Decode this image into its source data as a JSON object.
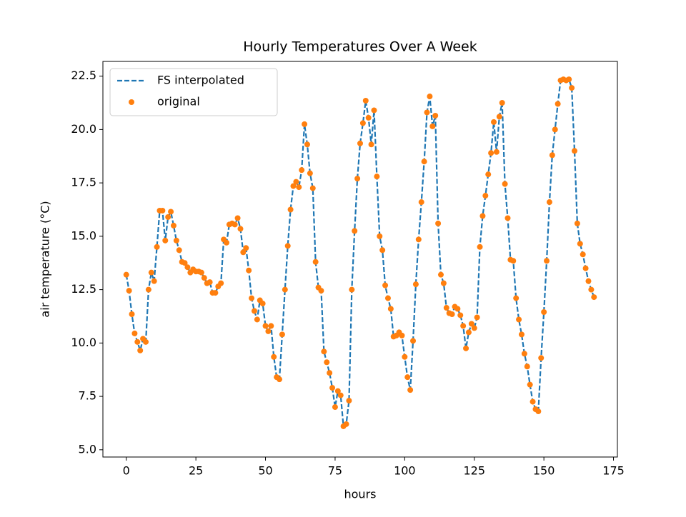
{
  "chart_data": {
    "type": "line",
    "title": "Hourly Temperatures Over A Week",
    "xlabel": "hours",
    "ylabel": "air temperature (°C)",
    "x": [
      0,
      1,
      2,
      3,
      4,
      5,
      6,
      7,
      8,
      9,
      10,
      11,
      12,
      13,
      14,
      15,
      16,
      17,
      18,
      19,
      20,
      21,
      22,
      23,
      24,
      25,
      26,
      27,
      28,
      29,
      30,
      31,
      32,
      33,
      34,
      35,
      36,
      37,
      38,
      39,
      40,
      41,
      42,
      43,
      44,
      45,
      46,
      47,
      48,
      49,
      50,
      51,
      52,
      53,
      54,
      55,
      56,
      57,
      58,
      59,
      60,
      61,
      62,
      63,
      64,
      65,
      66,
      67,
      68,
      69,
      70,
      71,
      72,
      73,
      74,
      75,
      76,
      77,
      78,
      79,
      80,
      81,
      82,
      83,
      84,
      85,
      86,
      87,
      88,
      89,
      90,
      91,
      92,
      93,
      94,
      95,
      96,
      97,
      98,
      99,
      100,
      101,
      102,
      103,
      104,
      105,
      106,
      107,
      108,
      109,
      110,
      111,
      112,
      113,
      114,
      115,
      116,
      117,
      118,
      119,
      120,
      121,
      122,
      123,
      124,
      125,
      126,
      127,
      128,
      129,
      130,
      131,
      132,
      133,
      134,
      135,
      136,
      137,
      138,
      139,
      140,
      141,
      142,
      143,
      144,
      145,
      146,
      147,
      148,
      149,
      150,
      151,
      152,
      153,
      154,
      155,
      156,
      157,
      158,
      159,
      160,
      161,
      162,
      163,
      164,
      165,
      166,
      167,
      168
    ],
    "series": [
      {
        "name": "FS interpolated",
        "color": "#1f77b4",
        "style": "dashed",
        "values": [
          13.2,
          12.45,
          11.35,
          10.45,
          10.05,
          9.65,
          10.2,
          10.05,
          12.5,
          13.3,
          12.9,
          14.5,
          16.2,
          16.2,
          14.8,
          15.9,
          16.15,
          15.5,
          14.8,
          14.35,
          13.8,
          13.75,
          13.55,
          13.3,
          13.45,
          13.35,
          13.35,
          13.3,
          13.05,
          12.8,
          12.85,
          12.35,
          12.35,
          12.65,
          12.8,
          14.85,
          14.7,
          15.55,
          15.6,
          15.55,
          15.85,
          15.35,
          14.25,
          14.45,
          13.4,
          12.1,
          11.5,
          11.1,
          12.0,
          11.85,
          10.8,
          10.55,
          10.8,
          9.35,
          8.4,
          8.3,
          10.4,
          12.5,
          14.55,
          16.25,
          17.35,
          17.55,
          17.3,
          18.1,
          20.25,
          19.3,
          17.95,
          17.25,
          13.8,
          12.6,
          12.45,
          9.6,
          9.1,
          8.6,
          7.9,
          7.0,
          7.75,
          7.55,
          6.1,
          6.2,
          7.3,
          12.5,
          15.25,
          17.7,
          19.35,
          20.3,
          21.35,
          20.55,
          19.3,
          20.9,
          17.8,
          15.0,
          14.35,
          12.7,
          12.1,
          11.6,
          10.3,
          10.35,
          10.5,
          10.35,
          9.35,
          8.4,
          7.8,
          10.1,
          12.75,
          14.85,
          16.6,
          18.5,
          20.8,
          21.55,
          20.15,
          20.65,
          15.6,
          13.2,
          12.8,
          11.65,
          11.4,
          11.35,
          11.7,
          11.6,
          11.3,
          10.8,
          9.75,
          10.5,
          10.9,
          10.7,
          11.2,
          14.5,
          15.95,
          16.9,
          17.9,
          18.9,
          20.35,
          18.95,
          20.6,
          21.25,
          17.45,
          15.85,
          13.9,
          13.85,
          12.1,
          11.1,
          10.4,
          9.5,
          8.9,
          8.05,
          7.25,
          6.9,
          6.8,
          9.3,
          11.45,
          13.85,
          16.6,
          18.8,
          20.0,
          21.2,
          22.3,
          22.35,
          22.3,
          22.35,
          21.95,
          19.0,
          15.6,
          14.65,
          14.15,
          13.5,
          12.9,
          12.5,
          12.15
        ]
      },
      {
        "name": "original",
        "color": "#ff7f0e",
        "style": "markers",
        "values": [
          13.2,
          12.45,
          11.35,
          10.45,
          10.05,
          9.65,
          10.2,
          10.05,
          12.5,
          13.3,
          12.9,
          14.5,
          16.2,
          16.2,
          14.8,
          15.9,
          16.15,
          15.5,
          14.8,
          14.35,
          13.8,
          13.75,
          13.55,
          13.3,
          13.45,
          13.35,
          13.35,
          13.3,
          13.05,
          12.8,
          12.85,
          12.35,
          12.35,
          12.65,
          12.8,
          14.85,
          14.7,
          15.55,
          15.6,
          15.55,
          15.85,
          15.35,
          14.25,
          14.45,
          13.4,
          12.1,
          11.5,
          11.1,
          12.0,
          11.85,
          10.8,
          10.55,
          10.8,
          9.35,
          8.4,
          8.3,
          10.4,
          12.5,
          14.55,
          16.25,
          17.35,
          17.55,
          17.3,
          18.1,
          20.25,
          19.3,
          17.95,
          17.25,
          13.8,
          12.6,
          12.45,
          9.6,
          9.1,
          8.6,
          7.9,
          7.0,
          7.75,
          7.55,
          6.1,
          6.2,
          7.3,
          12.5,
          15.25,
          17.7,
          19.35,
          20.3,
          21.35,
          20.55,
          19.3,
          20.9,
          17.8,
          15.0,
          14.35,
          12.7,
          12.1,
          11.6,
          10.3,
          10.35,
          10.5,
          10.35,
          9.35,
          8.4,
          7.8,
          10.1,
          12.75,
          14.85,
          16.6,
          18.5,
          20.8,
          21.55,
          20.15,
          20.65,
          15.6,
          13.2,
          12.8,
          11.65,
          11.4,
          11.35,
          11.7,
          11.6,
          11.3,
          10.8,
          9.75,
          10.5,
          10.9,
          10.7,
          11.2,
          14.5,
          15.95,
          16.9,
          17.9,
          18.9,
          20.35,
          18.95,
          20.6,
          21.25,
          17.45,
          15.85,
          13.9,
          13.85,
          12.1,
          11.1,
          10.4,
          9.5,
          8.9,
          8.05,
          7.25,
          6.9,
          6.8,
          9.3,
          11.45,
          13.85,
          16.6,
          18.8,
          20.0,
          21.2,
          22.3,
          22.35,
          22.3,
          22.35,
          21.95,
          19.0,
          15.6,
          14.65,
          14.15,
          13.5,
          12.9,
          12.5,
          12.15
        ]
      }
    ],
    "xlim": [
      -8.4,
      176.4
    ],
    "xticks": [
      0,
      25,
      50,
      75,
      100,
      125,
      150,
      175
    ],
    "ylim": [
      4.66,
      23.19
    ],
    "yticks": [
      {
        "value": 5,
        "label": "5.0"
      },
      7.5,
      {
        "value": 10,
        "label": "10.0"
      },
      12.5,
      {
        "value": 15,
        "label": "15.0"
      },
      17.5,
      {
        "value": 20,
        "label": "20.0"
      },
      22.5
    ],
    "grid": false,
    "legend": "upper left"
  }
}
